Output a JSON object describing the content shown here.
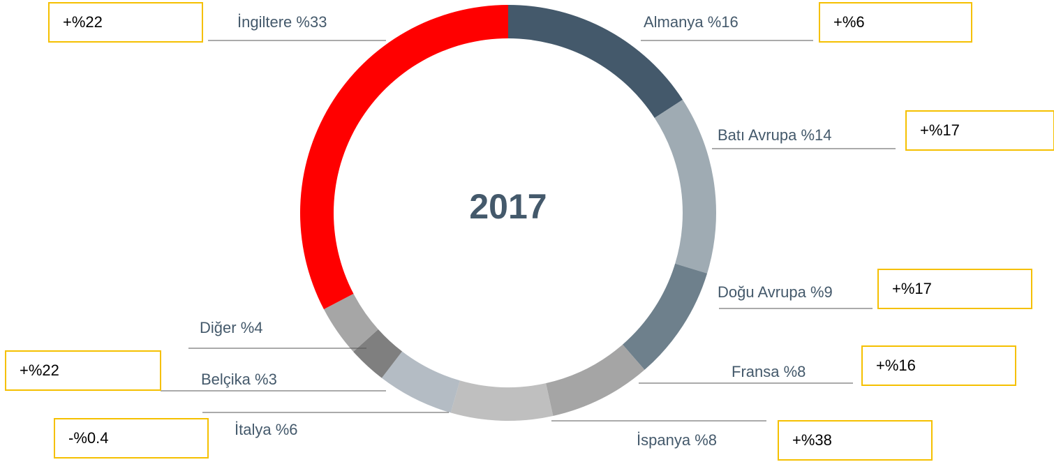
{
  "chart_data": {
    "type": "donut",
    "center_label": "2017",
    "categories": [
      "Almanya",
      "Batı Avrupa",
      "Doğu Avrupa",
      "Fransa",
      "İspanya",
      "İtalya",
      "Belçika",
      "Diğer",
      "İngiltere"
    ],
    "values": [
      16,
      14,
      9,
      8,
      8,
      6,
      3,
      4,
      33
    ],
    "value_labels": [
      "%16",
      "%14",
      "%9",
      "%8",
      "%8",
      "%6",
      "%3",
      "%4",
      "%33"
    ],
    "colors": [
      "#44596b",
      "#9fabb3",
      "#6e808c",
      "#a5a5a5",
      "#bfbfbf",
      "#b4bcc4",
      "#7f7f7f",
      "#a6a6a6",
      "#ff0000"
    ],
    "change_labels": [
      "+%6",
      "+%17",
      "+%17",
      "+%16",
      "+%38",
      "-%0.4",
      "+%22",
      null,
      "+%22"
    ]
  }
}
